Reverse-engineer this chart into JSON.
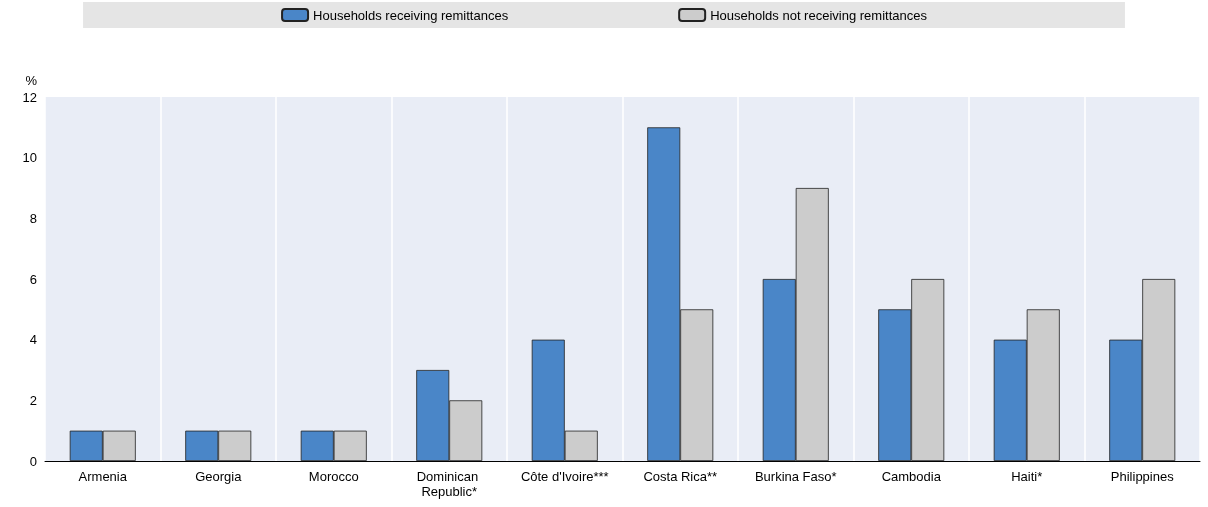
{
  "chart_data": {
    "type": "bar",
    "ylabel": "%",
    "categories": [
      "Armenia",
      "Georgia",
      "Morocco",
      "Dominican Republic*",
      "Côte d'Ivoire***",
      "Costa Rica**",
      "Burkina Faso*",
      "Cambodia",
      "Haiti*",
      "Philippines"
    ],
    "series": [
      {
        "name": "Households receiving remittances",
        "color": "#4a86c8",
        "values": [
          1,
          1,
          1,
          3,
          4,
          11,
          6,
          5,
          4,
          4
        ]
      },
      {
        "name": "Households not receiving remittances",
        "color": "#cccccc",
        "values": [
          1,
          1,
          1,
          2,
          1,
          5,
          9,
          6,
          5,
          6
        ]
      }
    ],
    "ylim": [
      0,
      12
    ],
    "yticks": [
      0,
      2,
      4,
      6,
      8,
      10,
      12
    ],
    "grid": "x",
    "legend": "top"
  }
}
